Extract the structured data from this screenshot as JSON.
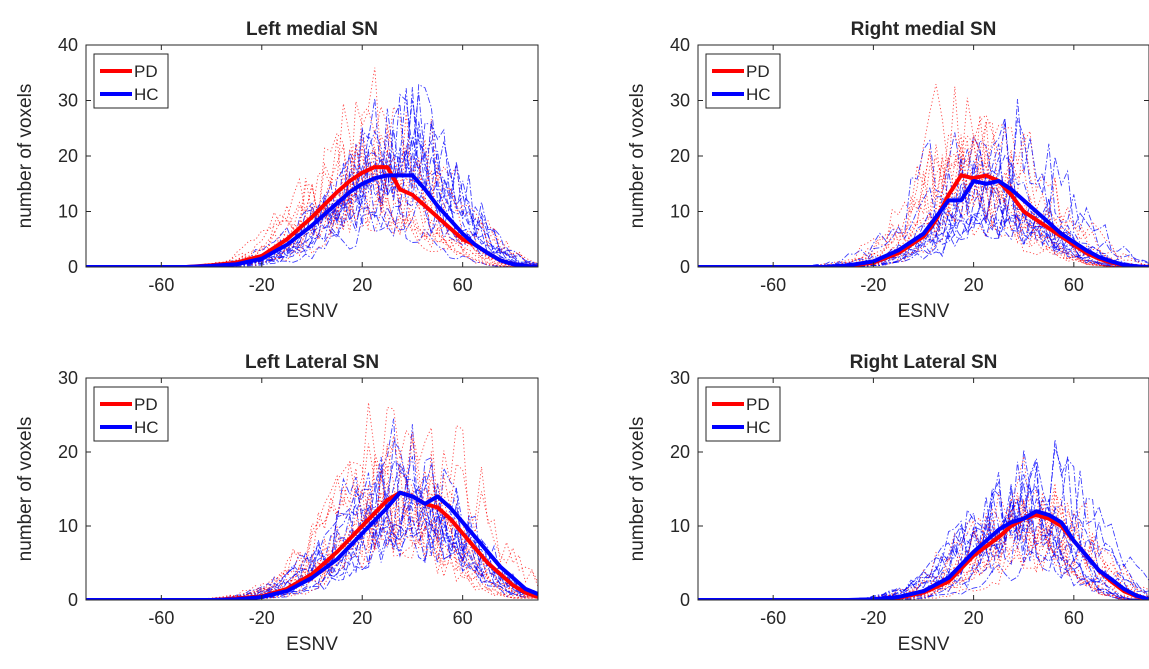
{
  "legend": {
    "pd": "PD",
    "hc": "HC"
  },
  "colors": {
    "pd": "#ff0000",
    "hc": "#0000ff",
    "axis": "#262626"
  },
  "chart_data": [
    {
      "type": "line",
      "title": "Left medial SN",
      "xlabel": "ESNV",
      "ylabel": "number of voxels",
      "xlim": [
        -90,
        90
      ],
      "ylim": [
        0,
        40
      ],
      "xticks": [
        -60,
        -20,
        20,
        60
      ],
      "yticks": [
        0,
        10,
        20,
        30,
        40
      ],
      "legend_position": "top-left",
      "series": [
        {
          "name": "PD",
          "style": "thick mean line",
          "color": "#ff0000",
          "x": [
            -90,
            -80,
            -70,
            -60,
            -50,
            -40,
            -30,
            -20,
            -10,
            0,
            10,
            15,
            20,
            25,
            30,
            35,
            40,
            45,
            50,
            55,
            60,
            65,
            70,
            75,
            80,
            85,
            90
          ],
          "y": [
            0,
            0,
            0,
            0,
            0,
            0.3,
            0.8,
            2,
            5,
            9,
            13.5,
            15.5,
            17,
            18,
            18,
            14,
            13,
            11,
            9,
            7,
            5,
            4,
            2.5,
            1.2,
            0.5,
            0.2,
            0
          ]
        },
        {
          "name": "HC",
          "style": "thick mean line",
          "color": "#0000ff",
          "x": [
            -90,
            -80,
            -70,
            -60,
            -50,
            -40,
            -30,
            -20,
            -10,
            0,
            10,
            15,
            20,
            25,
            30,
            35,
            40,
            45,
            50,
            55,
            60,
            65,
            70,
            75,
            80,
            85,
            90
          ],
          "y": [
            0,
            0,
            0,
            0,
            0,
            0.2,
            0.5,
            1.5,
            4,
            7.5,
            11.5,
            13.5,
            15,
            16,
            16.5,
            16.5,
            16.5,
            14,
            11,
            8.5,
            6,
            4,
            2.5,
            1.2,
            0.5,
            0.2,
            0
          ]
        }
      ]
    },
    {
      "type": "line",
      "title": "Right medial SN",
      "xlabel": "ESNV",
      "ylabel": "number of voxels",
      "xlim": [
        -90,
        90
      ],
      "ylim": [
        0,
        40
      ],
      "xticks": [
        -60,
        -20,
        20,
        60
      ],
      "yticks": [
        0,
        10,
        20,
        30,
        40
      ],
      "legend_position": "top-left",
      "series": [
        {
          "name": "PD",
          "style": "thick mean line",
          "color": "#ff0000",
          "x": [
            -90,
            -80,
            -70,
            -60,
            -50,
            -40,
            -30,
            -20,
            -10,
            0,
            5,
            10,
            15,
            20,
            25,
            30,
            35,
            40,
            45,
            50,
            55,
            60,
            65,
            70,
            75,
            80,
            85,
            90
          ],
          "y": [
            0,
            0,
            0,
            0,
            0,
            0,
            0.2,
            0.8,
            2.5,
            5.5,
            8.5,
            13,
            16.5,
            16,
            16.5,
            15.5,
            13,
            10,
            8.5,
            7,
            5.5,
            4,
            2.5,
            1.5,
            0.8,
            0.3,
            0.1,
            0
          ]
        },
        {
          "name": "HC",
          "style": "thick mean line",
          "color": "#0000ff",
          "x": [
            -90,
            -80,
            -70,
            -60,
            -50,
            -40,
            -30,
            -20,
            -10,
            0,
            5,
            10,
            15,
            20,
            25,
            30,
            35,
            40,
            45,
            50,
            55,
            60,
            65,
            70,
            75,
            80,
            85,
            90
          ],
          "y": [
            0,
            0,
            0,
            0,
            0,
            0,
            0.3,
            1,
            3,
            6,
            9,
            12,
            12,
            15.5,
            15,
            15.5,
            14,
            12,
            10,
            8,
            6,
            4.5,
            3,
            1.8,
            1,
            0.4,
            0.1,
            0
          ]
        }
      ]
    },
    {
      "type": "line",
      "title": "Left Lateral SN",
      "xlabel": "ESNV",
      "ylabel": "number of voxels",
      "xlim": [
        -90,
        90
      ],
      "ylim": [
        0,
        30
      ],
      "xticks": [
        -60,
        -20,
        20,
        60
      ],
      "yticks": [
        0,
        10,
        20,
        30
      ],
      "legend_position": "top-left",
      "series": [
        {
          "name": "PD",
          "style": "thick mean line",
          "color": "#ff0000",
          "x": [
            -90,
            -80,
            -70,
            -60,
            -50,
            -40,
            -30,
            -20,
            -10,
            0,
            10,
            20,
            30,
            35,
            40,
            45,
            50,
            55,
            60,
            65,
            70,
            75,
            80,
            85,
            90
          ],
          "y": [
            0,
            0,
            0,
            0,
            0,
            0,
            0.2,
            0.5,
            1.5,
            3.5,
            6.5,
            10,
            13.5,
            14.5,
            14,
            13,
            12.5,
            11,
            9,
            7,
            5,
            3.5,
            2,
            1,
            0.4
          ]
        },
        {
          "name": "HC",
          "style": "thick mean line",
          "color": "#0000ff",
          "x": [
            -90,
            -80,
            -70,
            -60,
            -50,
            -40,
            -30,
            -20,
            -10,
            0,
            10,
            20,
            30,
            35,
            40,
            45,
            50,
            55,
            60,
            65,
            70,
            75,
            80,
            85,
            90
          ],
          "y": [
            0,
            0,
            0,
            0,
            0,
            0,
            0.1,
            0.4,
            1.2,
            3,
            5.5,
            9,
            12.5,
            14.5,
            14,
            13,
            14,
            12.5,
            10.5,
            8.5,
            6.5,
            4.5,
            3,
            1.5,
            0.8
          ]
        }
      ]
    },
    {
      "type": "line",
      "title": "Right Lateral SN",
      "xlabel": "ESNV",
      "ylabel": "number of voxels",
      "xlim": [
        -90,
        90
      ],
      "ylim": [
        0,
        30
      ],
      "xticks": [
        -60,
        -20,
        20,
        60
      ],
      "yticks": [
        0,
        10,
        20,
        30
      ],
      "legend_position": "top-left",
      "series": [
        {
          "name": "PD",
          "style": "thick mean line",
          "color": "#ff0000",
          "x": [
            -90,
            -80,
            -70,
            -60,
            -50,
            -40,
            -30,
            -20,
            -10,
            0,
            10,
            20,
            30,
            35,
            40,
            45,
            50,
            55,
            60,
            65,
            70,
            75,
            80,
            85,
            90
          ],
          "y": [
            0,
            0,
            0,
            0,
            0,
            0,
            0,
            0,
            0.3,
            1,
            2.5,
            6,
            8.5,
            10,
            11,
            11.5,
            11,
            10,
            8,
            6,
            4,
            2.5,
            1.2,
            0.5,
            0
          ]
        },
        {
          "name": "HC",
          "style": "thick mean line",
          "color": "#0000ff",
          "x": [
            -90,
            -80,
            -70,
            -60,
            -50,
            -40,
            -30,
            -20,
            -10,
            0,
            10,
            20,
            30,
            35,
            40,
            45,
            50,
            55,
            60,
            65,
            70,
            75,
            80,
            85,
            90
          ],
          "y": [
            0,
            0,
            0,
            0,
            0,
            0,
            0,
            0.1,
            0.4,
            1.2,
            3,
            6.5,
            9.5,
            10.5,
            11,
            12,
            11.5,
            10.5,
            8,
            6,
            4,
            2.8,
            1.5,
            0.6,
            0.1
          ]
        }
      ]
    }
  ]
}
